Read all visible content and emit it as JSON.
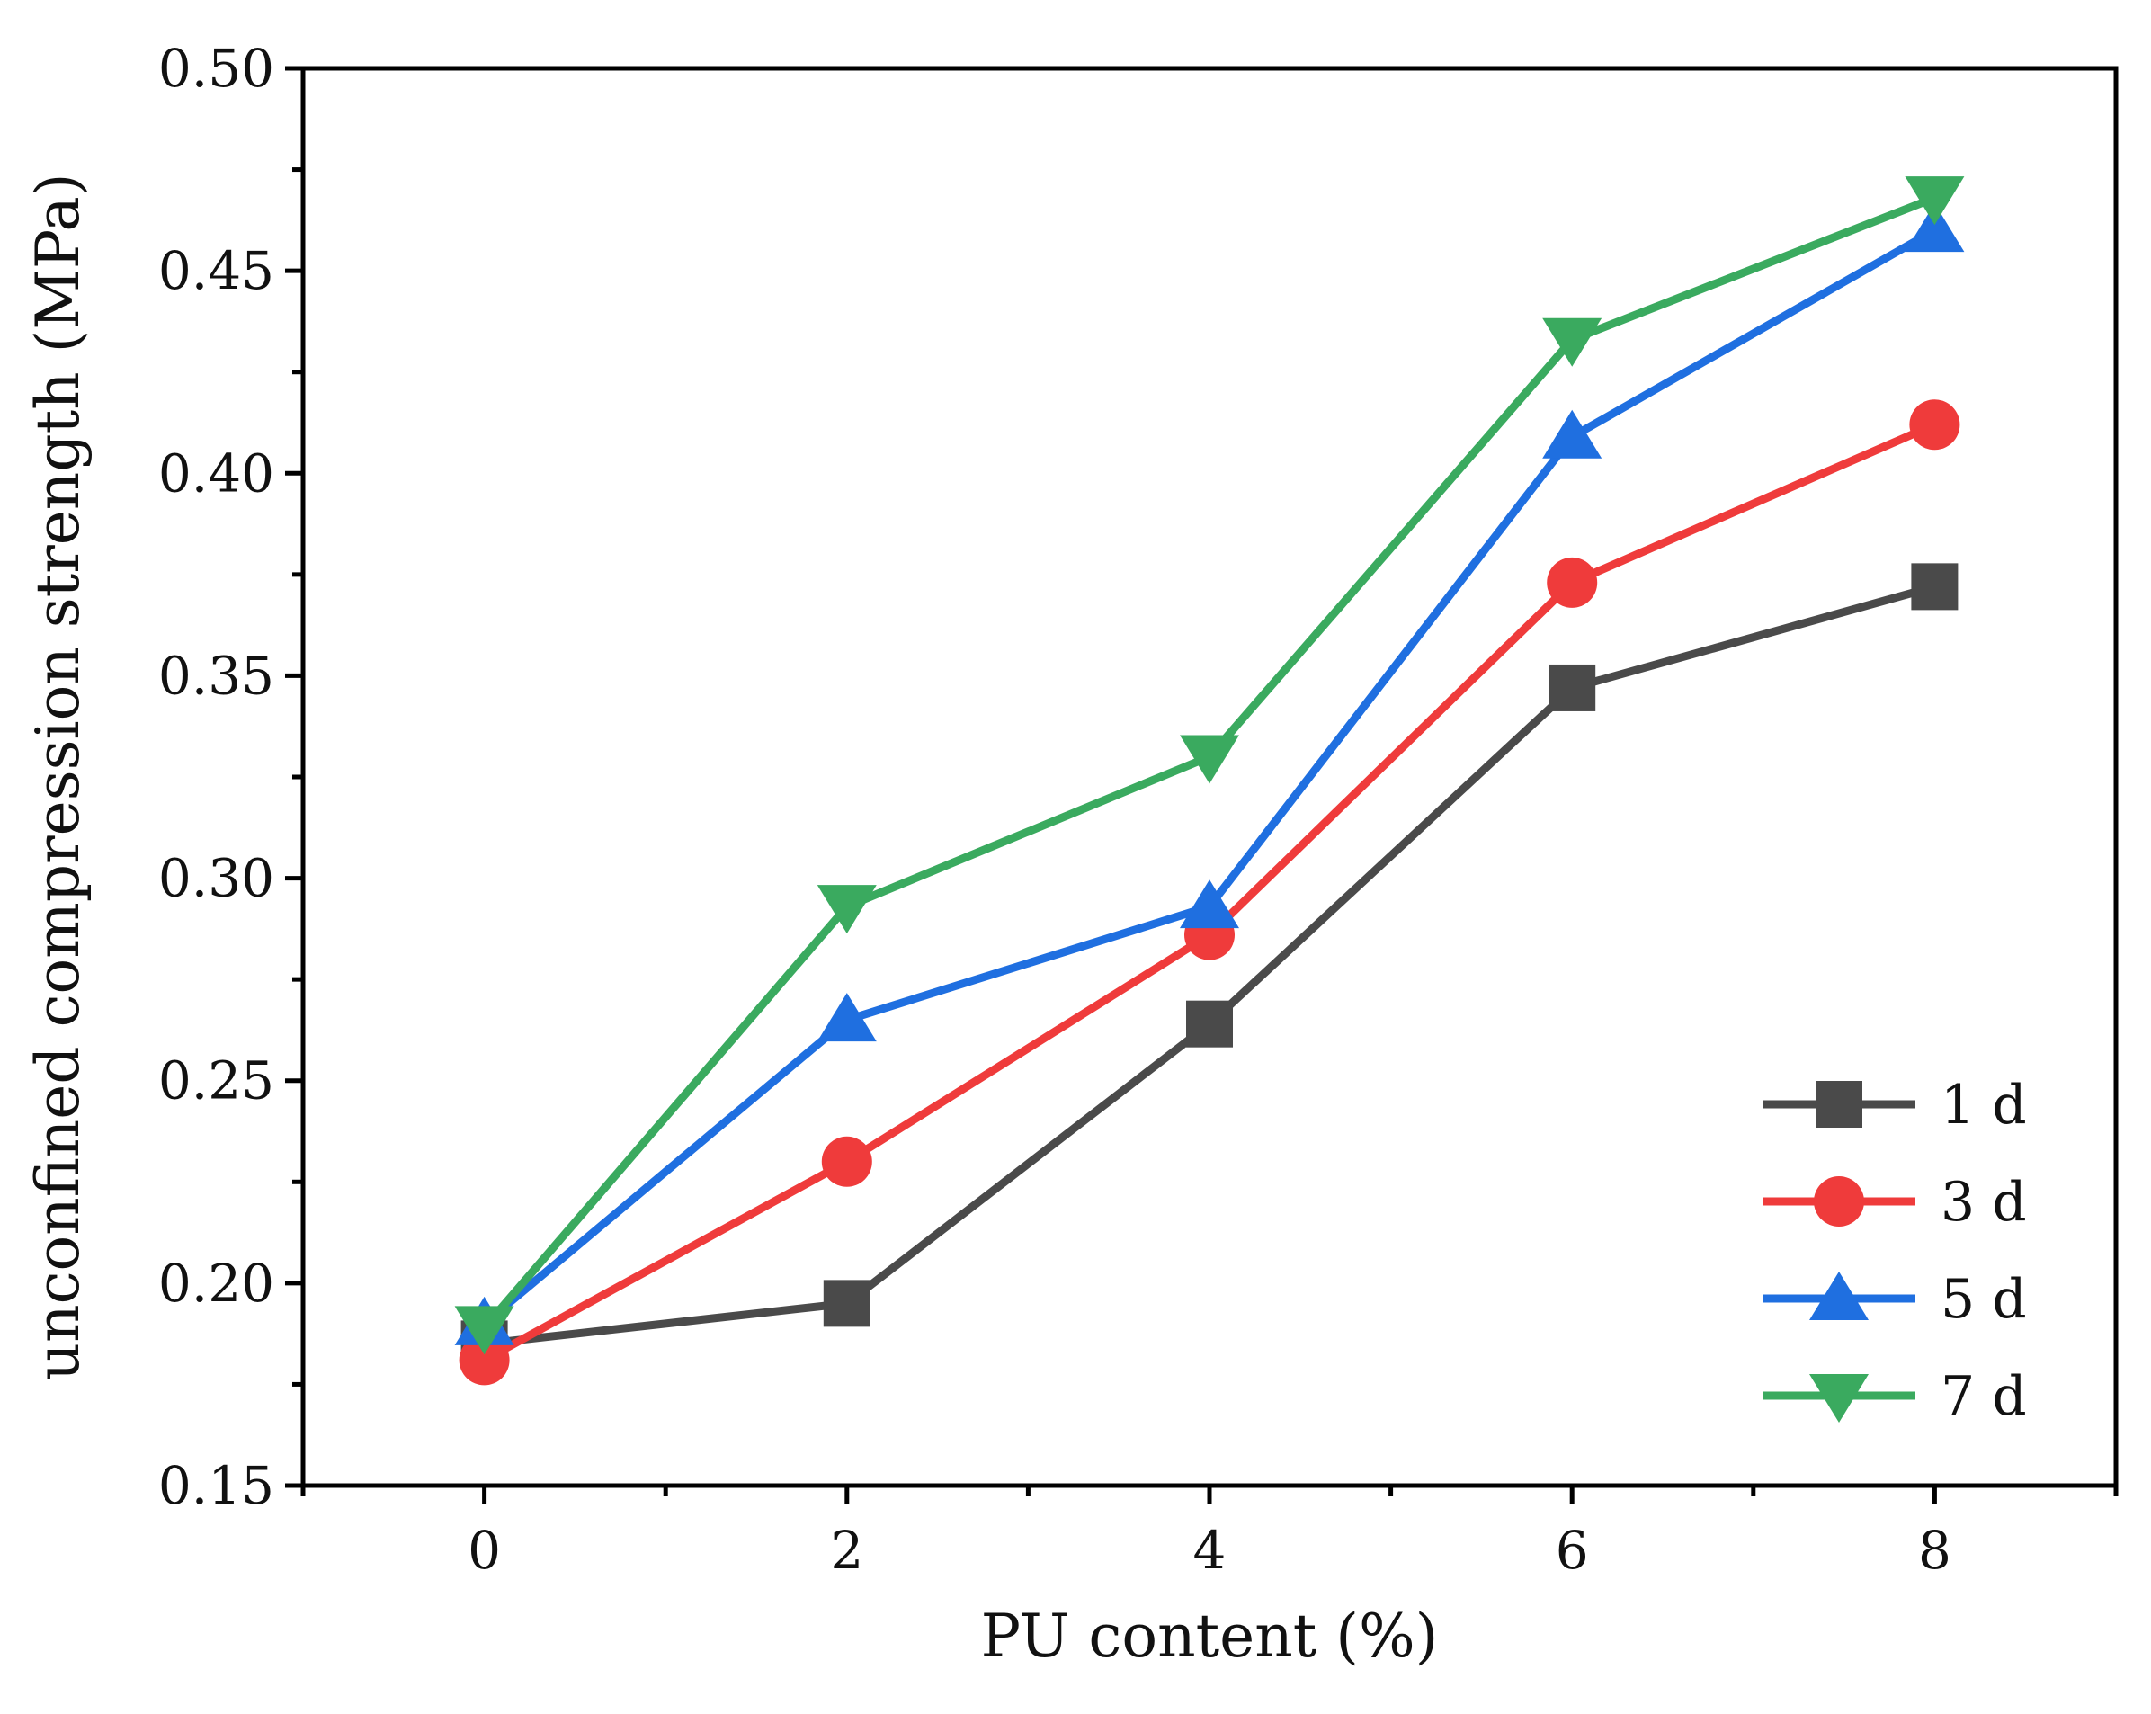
{
  "chart_data": {
    "type": "line",
    "title": "",
    "xlabel": "PU content (%)",
    "ylabel": "unconfined compression strength (MPa)",
    "xlim": [
      -1,
      9
    ],
    "ylim": [
      0.15,
      0.5
    ],
    "grid": false,
    "legend_position": "bottom-right",
    "x": [
      0,
      2,
      4,
      6,
      8
    ],
    "x_ticks": [
      "0",
      "2",
      "4",
      "6",
      "8"
    ],
    "y_ticks": [
      "0.15",
      "0.20",
      "0.25",
      "0.30",
      "0.35",
      "0.40",
      "0.45",
      "0.50"
    ],
    "series": [
      {
        "name": "1 d",
        "color": "#4a4a4a",
        "marker": "square",
        "values": [
          0.185,
          0.195,
          0.264,
          0.347,
          0.372
        ]
      },
      {
        "name": "3 d",
        "color": "#ef3b3b",
        "marker": "circle",
        "values": [
          0.181,
          0.23,
          0.286,
          0.373,
          0.412
        ]
      },
      {
        "name": "5 d",
        "color": "#1f6fe0",
        "marker": "triangle-up",
        "values": [
          0.19,
          0.265,
          0.293,
          0.409,
          0.46
        ]
      },
      {
        "name": "7 d",
        "color": "#3aaa5f",
        "marker": "triangle-down",
        "values": [
          0.189,
          0.293,
          0.33,
          0.433,
          0.468
        ]
      }
    ]
  }
}
